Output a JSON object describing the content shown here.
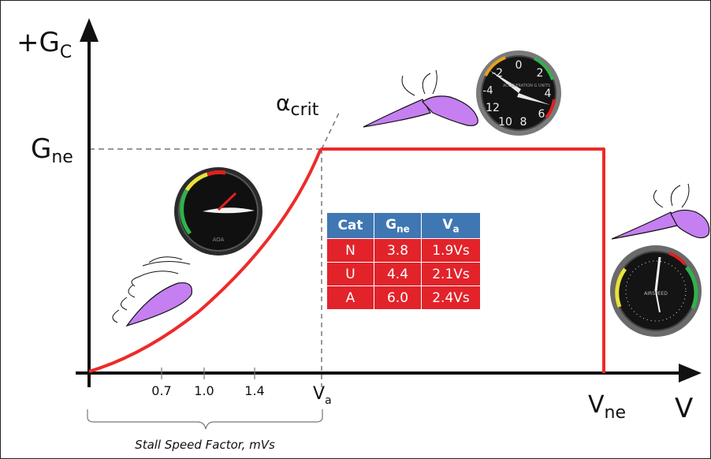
{
  "axes": {
    "y_label": "+G",
    "y_label_sub": "C",
    "x_label": "V"
  },
  "labels": {
    "g_ne": "G",
    "g_ne_sub": "ne",
    "alpha_crit": "α",
    "alpha_crit_sub": "crit",
    "v_a": "V",
    "v_a_sub": "a",
    "v_ne": "V",
    "v_ne_sub": "ne",
    "stall_caption": "Stall Speed Factor, mVs"
  },
  "ticks": [
    "0.7",
    "1.0",
    "1.4"
  ],
  "table": {
    "headers": [
      "Cat",
      "G",
      "V"
    ],
    "header_subs": [
      "",
      "ne",
      "a"
    ],
    "rows": [
      [
        "N",
        "3.8",
        "1.9Vs"
      ],
      [
        "U",
        "4.4",
        "2.1Vs"
      ],
      [
        "A",
        "6.0",
        "2.4Vs"
      ]
    ]
  },
  "instruments": {
    "aoa": {
      "icon": "aoa-gauge-icon",
      "label": "AOA"
    },
    "g_meter": {
      "icon": "g-meter-icon",
      "label": "ACCELERATION G UNITS",
      "scale": [
        "-2",
        "0",
        "2",
        "4",
        "6",
        "8",
        "10",
        "12",
        "-4"
      ]
    },
    "airspeed": {
      "icon": "airspeed-indicator-icon",
      "label": "AIRSPEED"
    }
  },
  "colors": {
    "envelope": "#ee2a2a",
    "airfoil": "#c57ff0",
    "table_header": "#3f77b2",
    "table_body": "#e2232a"
  }
}
